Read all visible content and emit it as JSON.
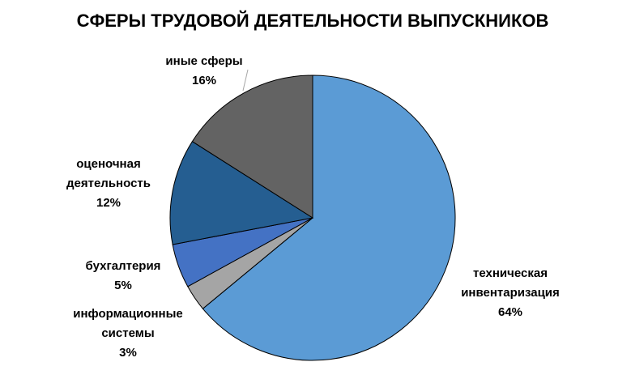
{
  "chart_data": {
    "type": "pie",
    "title": "СФЕРЫ ТРУДОВОЙ ДЕЯТЕЛЬНОСТИ ВЫПУСКНИКОВ",
    "categories": [
      [
        "техническая",
        "инвентаризация"
      ],
      [
        "информационные",
        "системы"
      ],
      [
        "бухгалтерия"
      ],
      [
        "оценочная",
        "деятельность"
      ],
      [
        "иные сферы"
      ]
    ],
    "values": [
      64,
      3,
      5,
      12,
      16
    ],
    "value_labels": [
      "64%",
      "3%",
      "5%",
      "12%",
      "16%"
    ],
    "colors": [
      "#5b9bd5",
      "#a5a5a5",
      "#4472c4",
      "#255e91",
      "#636363"
    ]
  }
}
